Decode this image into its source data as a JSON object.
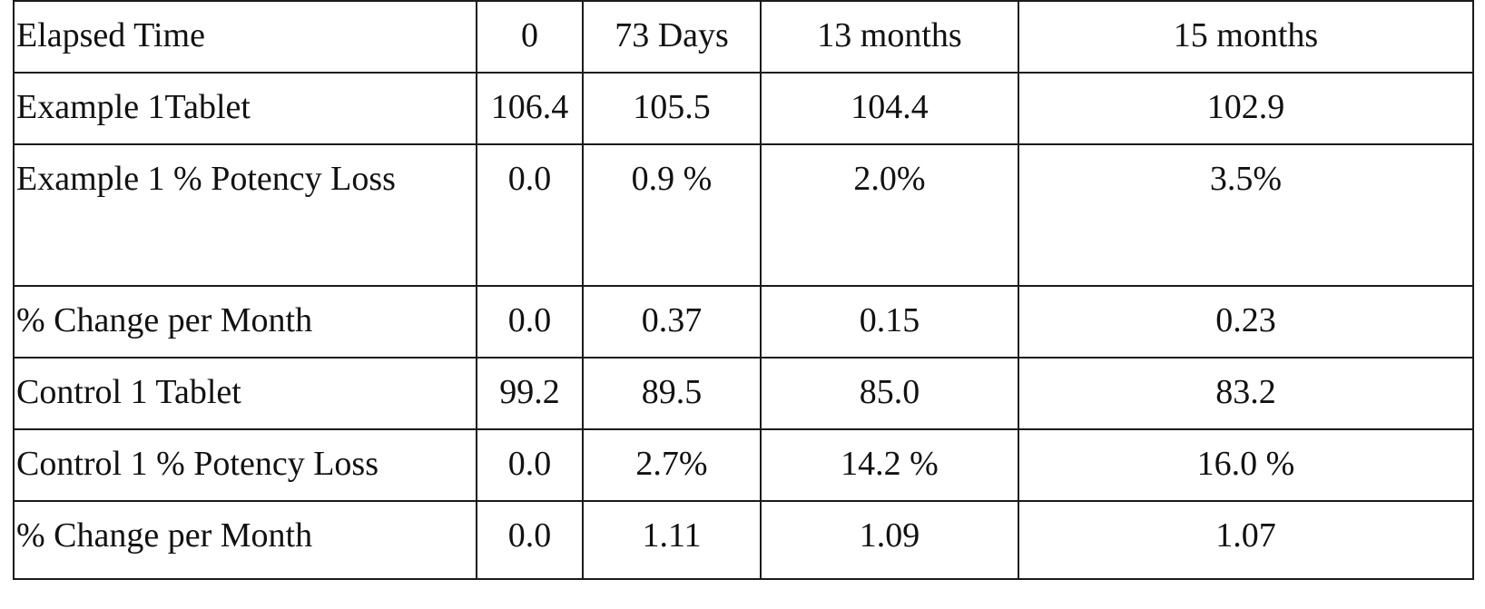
{
  "table": {
    "header": [
      "Elapsed Time",
      "0",
      "73 Days",
      "13 months",
      "15 months"
    ],
    "rows": [
      [
        "Example 1Tablet",
        "106.4",
        "105.5",
        "104.4",
        "102.9"
      ],
      [
        "Example 1 % Potency Loss",
        "0.0",
        "0.9 %",
        "2.0%",
        "3.5%"
      ],
      [
        "% Change per Month",
        "0.0",
        "0.37",
        "0.15",
        "0.23"
      ],
      [
        "Control 1 Tablet",
        "99.2",
        "89.5",
        "85.0",
        "83.2"
      ],
      [
        "Control 1 % Potency Loss",
        "0.0",
        "2.7%",
        "14.2 %",
        "16.0 %"
      ],
      [
        "% Change per Month",
        "0.0",
        "1.11",
        "1.09",
        "1.07"
      ]
    ]
  }
}
